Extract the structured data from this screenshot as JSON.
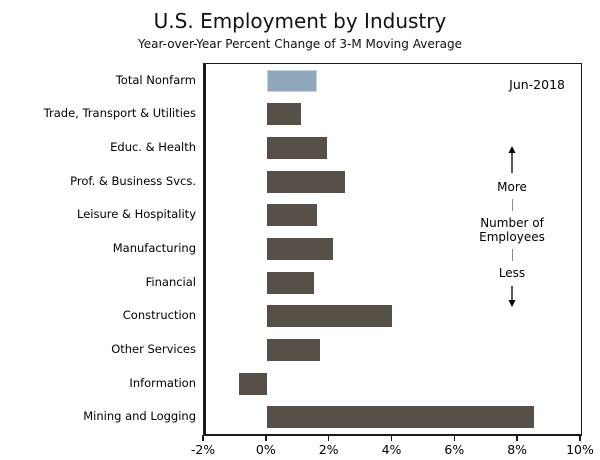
{
  "title": "U.S. Employment by Industry",
  "subtitle": "Year-over-Year Percent Change of 3-M Moving Average",
  "annotations": {
    "date_label": "Jun-2018",
    "more_label": "More",
    "middle_label_line1": "Number of",
    "middle_label_line2": "Employees",
    "less_label": "Less"
  },
  "colors": {
    "highlight_bar": "#8fa8bc",
    "highlight_bar_border": "#c2d3de",
    "default_bar": "#575049",
    "axis": "#1a1a1a",
    "separator_line": "#8a8a8a"
  },
  "chart_data": {
    "type": "bar",
    "orientation": "horizontal",
    "title": "U.S. Employment by Industry",
    "subtitle": "Year-over-Year Percent Change of 3-M Moving Average",
    "categories": [
      "Total Nonfarm",
      "Trade, Transport & Utilities",
      "Educ. & Health",
      "Prof. & Business Svcs.",
      "Leisure & Hospitality",
      "Manufacturing",
      "Financial",
      "Construction",
      "Other Services",
      "Information",
      "Mining and Logging"
    ],
    "values": [
      1.6,
      1.1,
      1.9,
      2.5,
      1.6,
      2.1,
      1.5,
      4.0,
      1.7,
      -0.9,
      8.5
    ],
    "highlight_index": 0,
    "xlim": [
      -2,
      10
    ],
    "xticks": [
      -2,
      0,
      2,
      4,
      6,
      8,
      10
    ],
    "xtick_labels": [
      "-2%",
      "0%",
      "2%",
      "4%",
      "6%",
      "8%",
      "10%"
    ],
    "xlabel": "",
    "ylabel": "",
    "grid": false,
    "legend": false,
    "period_label": "Jun-2018"
  }
}
